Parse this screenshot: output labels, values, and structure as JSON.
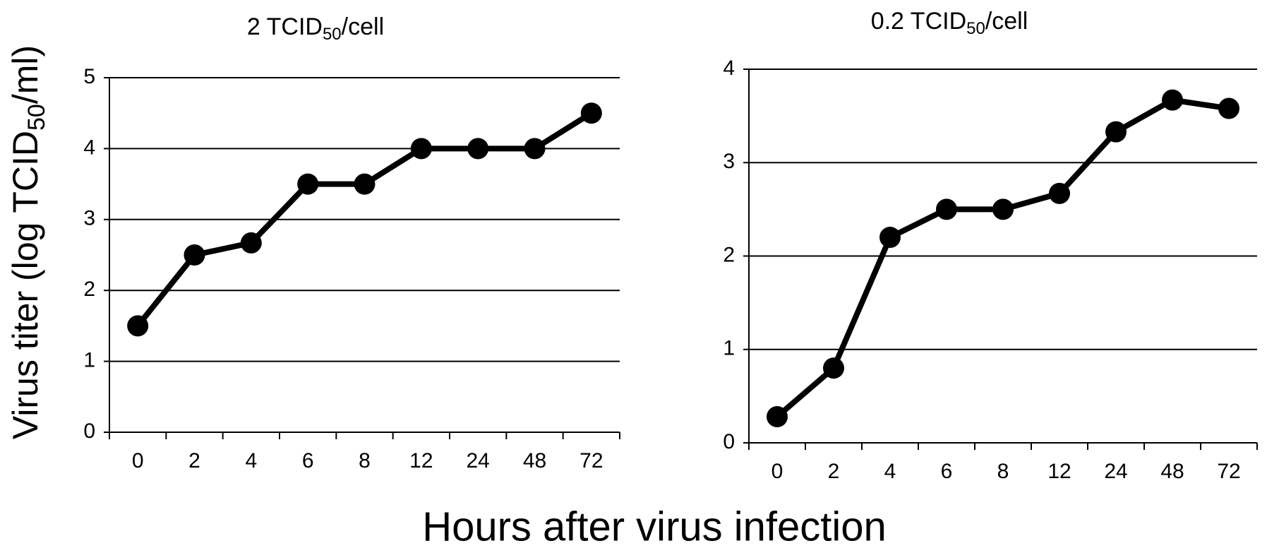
{
  "chart_data": [
    {
      "type": "line",
      "title": [
        "2 TCID",
        "50",
        "/cell"
      ],
      "categories": [
        "0",
        "2",
        "4",
        "6",
        "8",
        "12",
        "24",
        "48",
        "72"
      ],
      "values": [
        1.5,
        2.5,
        2.67,
        3.5,
        3.5,
        4,
        4,
        4,
        4.5
      ],
      "color": "#000000",
      "ylim": [
        0,
        5
      ],
      "yticks": [
        0,
        1,
        2,
        3,
        4,
        5
      ],
      "grid": true
    },
    {
      "type": "line",
      "title": [
        "0.2 TCID",
        "50",
        "/cell"
      ],
      "categories": [
        "0",
        "2",
        "4",
        "6",
        "8",
        "12",
        "24",
        "48",
        "72"
      ],
      "values": [
        0.28,
        0.8,
        2.2,
        2.5,
        2.5,
        2.67,
        3.33,
        3.67,
        3.58
      ],
      "color": "#000000",
      "ylim": [
        0,
        4
      ],
      "yticks": [
        0,
        1,
        2,
        3,
        4
      ],
      "grid": true
    }
  ],
  "ylabel": [
    "Virus titer (log TCID",
    "50",
    "/ml)"
  ],
  "xlabel": "Hours after virus infection"
}
